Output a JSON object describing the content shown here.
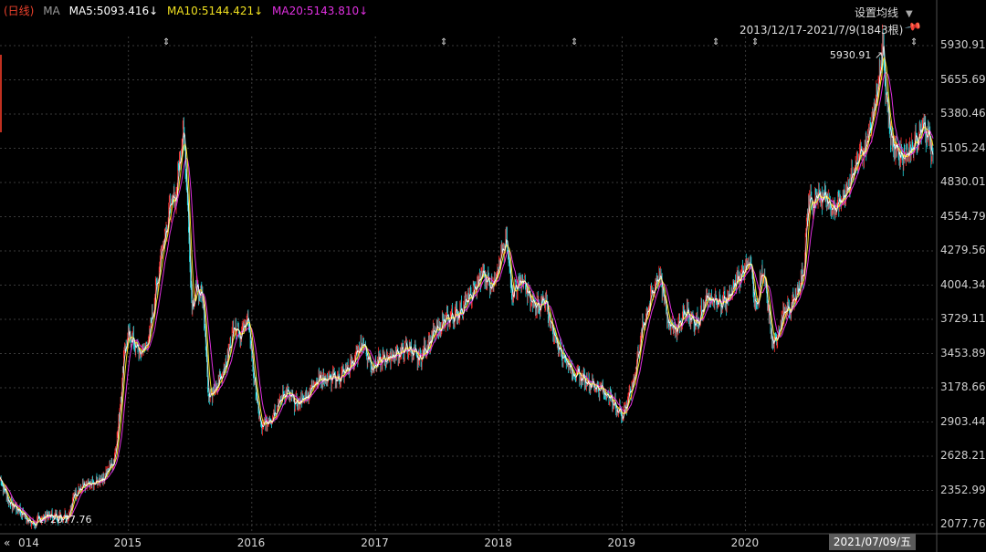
{
  "legend": {
    "period": "(日线)",
    "ma": "MA",
    "ma5": "MA5:5093.416↓",
    "ma10": "MA10:5144.421↓",
    "ma20": "MA20:5143.810↓"
  },
  "settings_label": "设置均线",
  "range_label": "2013/12/17-2021/7/9(1843根)",
  "cursor_date": "2021/07/09/五",
  "colors": {
    "ma5": "#ffffff",
    "ma10": "#f0e020",
    "ma20": "#e030e0",
    "up": "#ff3030",
    "down": "#20d8e0",
    "grid": "#3a3a3a"
  },
  "chart_data": {
    "type": "line",
    "title": "",
    "xlabel": "",
    "ylabel": "",
    "x_tick_labels": [
      "014",
      "2015",
      "2016",
      "2017",
      "2018",
      "2019",
      "2020"
    ],
    "y_tick_labels": [
      "5930.91",
      "5655.69",
      "5380.46",
      "5105.24",
      "4830.01",
      "4554.79",
      "4279.56",
      "4004.34",
      "3729.11",
      "3453.89",
      "3178.66",
      "2903.44",
      "2628.21",
      "2352.99",
      "2077.76"
    ],
    "ylim": [
      2077.76,
      5930.91
    ],
    "xlim": [
      "2013-12-17",
      "2021-07-09"
    ],
    "grid": true,
    "series": [
      {
        "values": [
          [
            "2013-12-17",
            2450
          ],
          [
            "2014-01-15",
            2250
          ],
          [
            "2014-02-10",
            2200
          ],
          [
            "2014-03-10",
            2120
          ],
          [
            "2014-03-25",
            2077.76
          ],
          [
            "2014-05-01",
            2150
          ],
          [
            "2014-06-15",
            2140
          ],
          [
            "2014-07-10",
            2160
          ],
          [
            "2014-07-25",
            2330
          ],
          [
            "2014-08-20",
            2380
          ],
          [
            "2014-09-20",
            2400
          ],
          [
            "2014-10-20",
            2460
          ],
          [
            "2014-11-20",
            2600
          ],
          [
            "2014-12-05",
            2950
          ],
          [
            "2014-12-20",
            3500
          ],
          [
            "2015-01-05",
            3600
          ],
          [
            "2015-02-05",
            3450
          ],
          [
            "2015-03-01",
            3550
          ],
          [
            "2015-03-20",
            3900
          ],
          [
            "2015-04-10",
            4300
          ],
          [
            "2015-05-05",
            4650
          ],
          [
            "2015-05-20",
            4700
          ],
          [
            "2015-06-05",
            5100
          ],
          [
            "2015-06-12",
            5300
          ],
          [
            "2015-06-25",
            4700
          ],
          [
            "2015-07-08",
            3750
          ],
          [
            "2015-07-20",
            4000
          ],
          [
            "2015-08-10",
            3900
          ],
          [
            "2015-08-26",
            3100
          ],
          [
            "2015-09-15",
            3150
          ],
          [
            "2015-10-20",
            3400
          ],
          [
            "2015-11-10",
            3700
          ],
          [
            "2015-12-01",
            3600
          ],
          [
            "2015-12-20",
            3750
          ],
          [
            "2016-01-10",
            3200
          ],
          [
            "2016-01-28",
            2850
          ],
          [
            "2016-03-01",
            2950
          ],
          [
            "2016-04-10",
            3150
          ],
          [
            "2016-05-10",
            3050
          ],
          [
            "2016-06-10",
            3100
          ],
          [
            "2016-07-10",
            3250
          ],
          [
            "2016-08-10",
            3250
          ],
          [
            "2016-09-10",
            3250
          ],
          [
            "2016-10-20",
            3350
          ],
          [
            "2016-11-25",
            3550
          ],
          [
            "2016-12-20",
            3350
          ],
          [
            "2017-01-20",
            3400
          ],
          [
            "2017-03-01",
            3450
          ],
          [
            "2017-04-10",
            3500
          ],
          [
            "2017-05-10",
            3400
          ],
          [
            "2017-06-20",
            3600
          ],
          [
            "2017-07-20",
            3700
          ],
          [
            "2017-09-10",
            3800
          ],
          [
            "2017-10-20",
            3950
          ],
          [
            "2017-11-15",
            4100
          ],
          [
            "2017-12-10",
            4000
          ],
          [
            "2018-01-24",
            4350
          ],
          [
            "2018-02-09",
            3950
          ],
          [
            "2018-03-10",
            4050
          ],
          [
            "2018-04-10",
            3850
          ],
          [
            "2018-05-20",
            3850
          ],
          [
            "2018-06-20",
            3550
          ],
          [
            "2018-07-10",
            3450
          ],
          [
            "2018-08-10",
            3300
          ],
          [
            "2018-09-10",
            3250
          ],
          [
            "2018-10-10",
            3200
          ],
          [
            "2018-11-10",
            3150
          ],
          [
            "2019-01-03",
            2960
          ],
          [
            "2019-02-01",
            3200
          ],
          [
            "2019-03-05",
            3700
          ],
          [
            "2019-04-19",
            4100
          ],
          [
            "2019-05-20",
            3700
          ],
          [
            "2019-06-10",
            3650
          ],
          [
            "2019-07-10",
            3800
          ],
          [
            "2019-08-10",
            3700
          ],
          [
            "2019-09-10",
            3900
          ],
          [
            "2019-10-10",
            3850
          ],
          [
            "2019-11-10",
            3900
          ],
          [
            "2019-12-20",
            4100
          ],
          [
            "2020-01-13",
            4200
          ],
          [
            "2020-02-03",
            3800
          ],
          [
            "2020-02-20",
            4150
          ],
          [
            "2020-03-23",
            3500
          ],
          [
            "2020-04-20",
            3750
          ],
          [
            "2020-05-20",
            3850
          ],
          [
            "2020-06-20",
            4100
          ],
          [
            "2020-07-06",
            4700
          ],
          [
            "2020-07-20",
            4650
          ],
          [
            "2020-08-20",
            4750
          ],
          [
            "2020-09-20",
            4600
          ],
          [
            "2020-10-20",
            4750
          ],
          [
            "2020-11-20",
            4950
          ],
          [
            "2020-12-20",
            5100
          ],
          [
            "2021-01-20",
            5500
          ],
          [
            "2021-02-10",
            5930.91
          ],
          [
            "2021-02-25",
            5400
          ],
          [
            "2021-03-10",
            5150
          ],
          [
            "2021-04-10",
            5050
          ],
          [
            "2021-05-10",
            5100
          ],
          [
            "2021-06-10",
            5300
          ],
          [
            "2021-06-25",
            5200
          ],
          [
            "2021-07-09",
            5050
          ]
        ]
      }
    ],
    "annotations": [
      {
        "text": "5930.91",
        "x": "2021-02-10",
        "y": 5930.91
      },
      {
        "text": "2077.76",
        "x": "2014-03-25",
        "y": 2077.76
      }
    ]
  }
}
